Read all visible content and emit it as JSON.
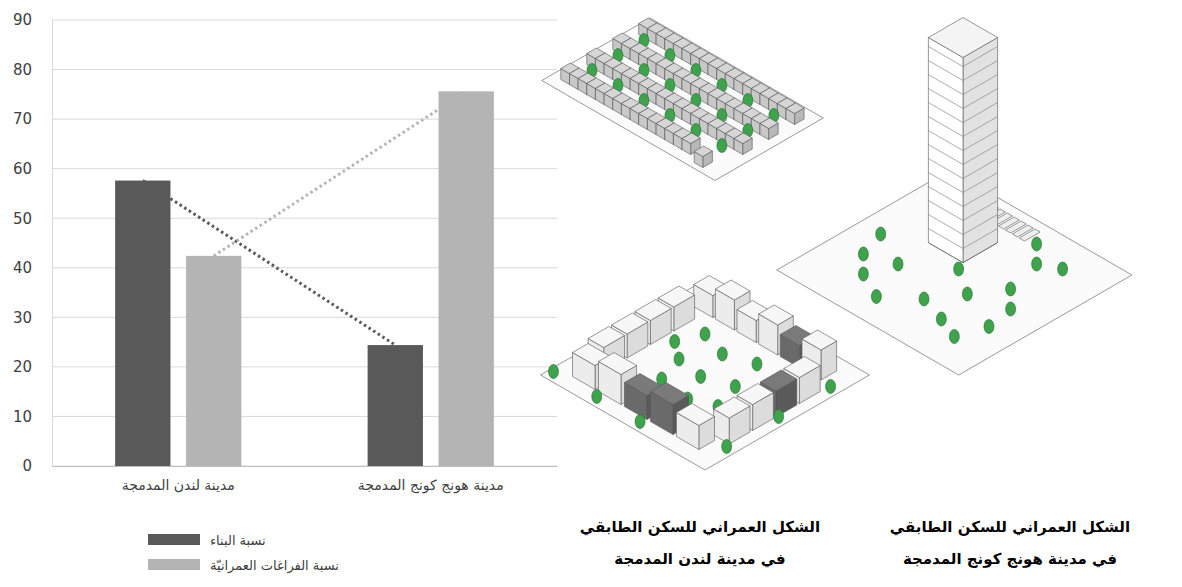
{
  "chart_data": {
    "type": "bar",
    "categories": [
      "مدينة لندن المدمجة",
      "مدينة هونج كونج المدمجة"
    ],
    "series": [
      {
        "name": "نسبة البناء",
        "color": "#595959",
        "values": [
          57.6,
          24.4
        ],
        "line_style": "dotted"
      },
      {
        "name": "نسبة الفراغات العمرانيّة",
        "color": "#b4b4b4",
        "values": [
          42.4,
          75.6
        ],
        "line_style": "dotted"
      }
    ],
    "ylim": [
      0,
      90
    ],
    "yticks": [
      0,
      10,
      20,
      30,
      40,
      50,
      60,
      70,
      80,
      90
    ],
    "grid": true,
    "legend": "bottom",
    "annotations": [
      {
        "lines": [
          "الشكل العمراني للسكن الطابقي",
          "في مدينة لندن المدمجة"
        ]
      },
      {
        "lines": [
          "الشكل العمراني للسكن الطابقي",
          "في مدينة هونج كونج المدمجة"
        ]
      }
    ]
  }
}
